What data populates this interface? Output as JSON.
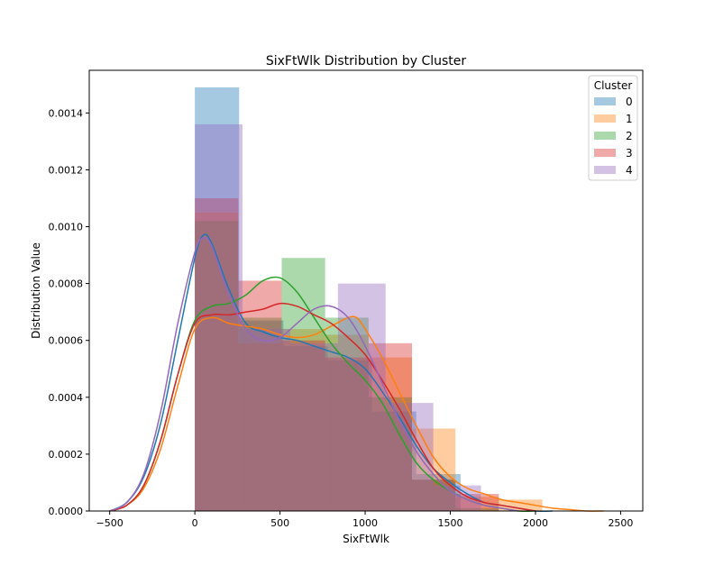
{
  "chart_data": {
    "type": "histogram",
    "title": "SixFtWlk Distribution by Cluster",
    "xlabel": "SixFtWlk",
    "ylabel": "Distribution Value",
    "xlim": [
      -620,
      2630
    ],
    "ylim": [
      0,
      0.00155
    ],
    "xticks": [
      -500,
      0,
      500,
      1000,
      1500,
      2000,
      2500
    ],
    "xtick_labels": [
      "−500",
      "0",
      "500",
      "1000",
      "1500",
      "2000",
      "2500"
    ],
    "yticks": [
      0,
      0.0002,
      0.0004,
      0.0006,
      0.0008,
      0.001,
      0.0012,
      0.0014
    ],
    "ytick_labels": [
      "0.0000",
      "0.0002",
      "0.0004",
      "0.0006",
      "0.0008",
      "0.0010",
      "0.0012",
      "0.0014"
    ],
    "legend": {
      "title": "Cluster",
      "position": "top-right"
    },
    "series": [
      {
        "name": "0",
        "color": "#1f77b4",
        "bins": [
          [
            0,
            260,
            0.00149
          ],
          [
            260,
            520,
            0.00067
          ],
          [
            520,
            780,
            0.00058
          ],
          [
            780,
            1040,
            0.00053
          ],
          [
            1040,
            1300,
            0.00035
          ],
          [
            1300,
            1560,
            0.00013
          ]
        ],
        "kde_x": [
          -500,
          -400,
          -300,
          -200,
          -100,
          0,
          50,
          100,
          200,
          300,
          400,
          500,
          600,
          700,
          800,
          900,
          1000,
          1100,
          1200,
          1300,
          1400,
          1500,
          1600,
          1700,
          1800,
          1900,
          2000,
          2100
        ],
        "kde_y": [
          0,
          3e-05,
          0.00012,
          0.00031,
          0.0006,
          0.00089,
          0.00097,
          0.00094,
          0.00078,
          0.00066,
          0.00063,
          0.00061,
          0.0006,
          0.00058,
          0.00056,
          0.00054,
          0.0005,
          0.00042,
          0.00033,
          0.00023,
          0.00015,
          0.0001,
          6e-05,
          3e-05,
          2e-05,
          1e-05,
          0,
          0
        ]
      },
      {
        "name": "1",
        "color": "#ff7f0e",
        "bins": [
          [
            0,
            255,
            0.00105
          ],
          [
            255,
            510,
            0.00059
          ],
          [
            510,
            765,
            0.00064
          ],
          [
            765,
            1020,
            0.00062
          ],
          [
            1020,
            1275,
            0.00054
          ],
          [
            1275,
            1530,
            0.00029
          ],
          [
            1530,
            1785,
            5e-05
          ],
          [
            1785,
            2040,
            4e-05
          ]
        ],
        "kde_x": [
          -500,
          -400,
          -300,
          -200,
          -100,
          0,
          100,
          200,
          300,
          400,
          500,
          600,
          700,
          800,
          900,
          950,
          1000,
          1100,
          1200,
          1300,
          1400,
          1500,
          1600,
          1700,
          1800,
          1900,
          2000,
          2100,
          2200,
          2300,
          2400
        ],
        "kde_y": [
          0,
          2e-05,
          8e-05,
          0.00022,
          0.00044,
          0.00064,
          0.00068,
          0.00066,
          0.00065,
          0.00064,
          0.00062,
          0.00061,
          0.00062,
          0.00065,
          0.00068,
          0.00068,
          0.00064,
          0.00054,
          0.00042,
          0.0003,
          0.00019,
          0.00012,
          8e-05,
          6e-05,
          4e-05,
          3e-05,
          2e-05,
          1e-05,
          5e-06,
          0,
          0
        ]
      },
      {
        "name": "2",
        "color": "#2ca02c",
        "bins": [
          [
            0,
            255,
            0.00102
          ],
          [
            255,
            510,
            0.00068
          ],
          [
            510,
            765,
            0.00089
          ],
          [
            765,
            1020,
            0.00068
          ],
          [
            1020,
            1275,
            0.0004
          ],
          [
            1275,
            1530,
            0.00011
          ],
          [
            1530,
            1785,
            1e-05
          ]
        ],
        "kde_x": [
          -500,
          -400,
          -300,
          -200,
          -100,
          0,
          100,
          200,
          300,
          400,
          500,
          600,
          700,
          800,
          900,
          1000,
          1100,
          1200,
          1300,
          1400,
          1500,
          1600,
          1700,
          1800,
          1900,
          2000
        ],
        "kde_y": [
          0,
          2e-05,
          9e-05,
          0.00025,
          0.00048,
          0.00067,
          0.00072,
          0.00073,
          0.00076,
          0.00081,
          0.00082,
          0.00077,
          0.00068,
          0.00059,
          0.00052,
          0.00046,
          0.00038,
          0.00027,
          0.00017,
          0.00011,
          7e-05,
          4e-05,
          2e-05,
          1e-05,
          0,
          0
        ]
      },
      {
        "name": "3",
        "color": "#d62728",
        "bins": [
          [
            0,
            255,
            0.0011
          ],
          [
            255,
            510,
            0.00081
          ],
          [
            510,
            765,
            0.0006
          ],
          [
            765,
            1020,
            0.00054
          ],
          [
            1020,
            1275,
            0.00059
          ],
          [
            1275,
            1530,
            0.00011
          ],
          [
            1530,
            1785,
            6e-05
          ]
        ],
        "kde_x": [
          -500,
          -400,
          -300,
          -200,
          -100,
          0,
          100,
          200,
          300,
          400,
          500,
          600,
          700,
          800,
          900,
          1000,
          1100,
          1200,
          1300,
          1400,
          1500,
          1600,
          1700,
          1800,
          1900,
          2000
        ],
        "kde_y": [
          0,
          2e-05,
          9e-05,
          0.00025,
          0.00048,
          0.00066,
          0.00069,
          0.00069,
          0.0007,
          0.00071,
          0.00073,
          0.00072,
          0.00069,
          0.00066,
          0.00061,
          0.00055,
          0.00046,
          0.00036,
          0.00025,
          0.00015,
          9e-05,
          5e-05,
          3e-05,
          2e-05,
          1e-05,
          0
        ]
      },
      {
        "name": "4",
        "color": "#9467bd",
        "bins": [
          [
            0,
            280,
            0.00136
          ],
          [
            280,
            560,
            0.00064
          ],
          [
            560,
            840,
            0.00059
          ],
          [
            840,
            1120,
            0.0008
          ],
          [
            1120,
            1400,
            0.00038
          ],
          [
            1400,
            1680,
            9e-05
          ]
        ],
        "kde_x": [
          -500,
          -400,
          -300,
          -200,
          -100,
          0,
          50,
          100,
          200,
          300,
          400,
          500,
          600,
          700,
          800,
          900,
          1000,
          1100,
          1200,
          1300,
          1400,
          1500,
          1600,
          1700,
          1800,
          1900
        ],
        "kde_y": [
          0,
          3e-05,
          0.00013,
          0.00035,
          0.00066,
          0.00091,
          0.00096,
          0.00093,
          0.00076,
          0.00064,
          0.0006,
          0.00061,
          0.00066,
          0.00071,
          0.00072,
          0.00068,
          0.00058,
          0.00045,
          0.00032,
          0.00021,
          0.00013,
          7e-05,
          4e-05,
          2e-05,
          1e-05,
          0
        ]
      }
    ]
  }
}
